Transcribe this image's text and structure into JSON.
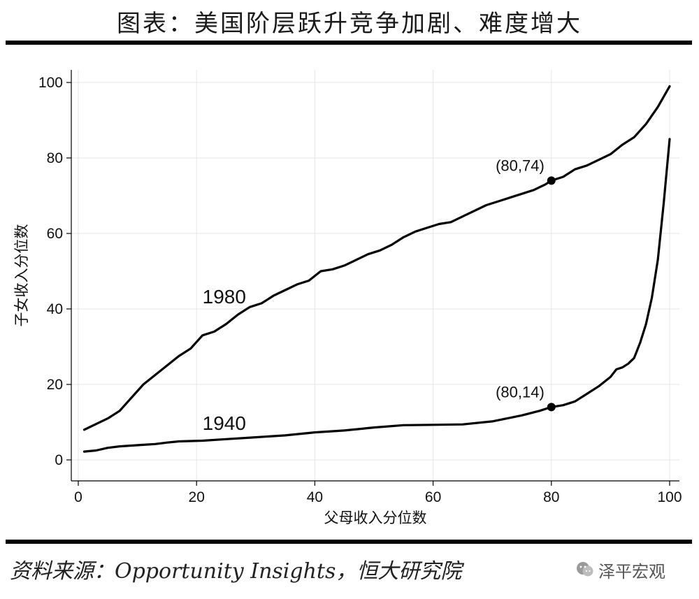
{
  "header": {
    "title": "图表：美国阶层跃升竞争加剧、难度增大"
  },
  "footer": {
    "source": "资料来源：Opportunity Insights，恒大研究院"
  },
  "watermark": {
    "text": "泽平宏观",
    "icon": "wechat-icon"
  },
  "chart_data": {
    "type": "line",
    "title": "",
    "xlabel": "父母收入分位数",
    "ylabel": "子女收入分位数",
    "xlim": [
      0,
      100
    ],
    "ylim": [
      0,
      100
    ],
    "xticks": [
      0,
      20,
      40,
      60,
      80,
      100
    ],
    "yticks": [
      0,
      20,
      40,
      60,
      80,
      100
    ],
    "grid": true,
    "line_color": "#000000",
    "grid_color": "#e6e6e6",
    "series": [
      {
        "name": "1980",
        "x": [
          1,
          3,
          5,
          7,
          9,
          11,
          13,
          15,
          17,
          19,
          21,
          23,
          25,
          27,
          29,
          31,
          33,
          35,
          37,
          39,
          41,
          43,
          45,
          47,
          49,
          51,
          53,
          55,
          57,
          59,
          61,
          63,
          65,
          67,
          69,
          71,
          73,
          75,
          77,
          79,
          80,
          82,
          84,
          86,
          88,
          90,
          92,
          94,
          96,
          98,
          100
        ],
        "values": [
          8,
          9.5,
          11,
          13,
          16.5,
          20,
          22.5,
          25,
          27.5,
          29.5,
          33,
          34,
          36,
          38.5,
          40.5,
          41.5,
          43.5,
          45,
          46.5,
          47.5,
          50,
          50.5,
          51.5,
          53,
          54.5,
          55.5,
          57,
          59,
          60.5,
          61.5,
          62.5,
          63,
          64.5,
          66,
          67.5,
          68.5,
          69.5,
          70.5,
          71.5,
          73,
          74,
          75,
          77,
          78,
          79.5,
          81,
          83.5,
          85.5,
          89,
          93.5,
          99
        ]
      },
      {
        "name": "1940",
        "x": [
          1,
          3,
          5,
          7,
          9,
          11,
          13,
          15,
          17,
          19,
          21,
          25,
          30,
          35,
          40,
          45,
          50,
          55,
          60,
          65,
          70,
          75,
          78,
          80,
          82,
          84,
          86,
          88,
          90,
          91,
          92,
          93,
          94,
          95,
          96,
          97,
          98,
          99,
          100
        ],
        "values": [
          2.2,
          2.5,
          3.2,
          3.6,
          3.8,
          4,
          4.2,
          4.6,
          4.9,
          5,
          5.1,
          5.5,
          6,
          6.5,
          7.3,
          7.8,
          8.6,
          9.2,
          9.3,
          9.4,
          10.2,
          11.8,
          13,
          14,
          14.5,
          15.5,
          17.5,
          19.5,
          22,
          24,
          24.5,
          25.5,
          27,
          31,
          36,
          43,
          53,
          68,
          85
        ]
      }
    ],
    "series_label_positions": [
      {
        "series": "1980",
        "x": 21,
        "y": 41.5
      },
      {
        "series": "1940",
        "x": 21,
        "y": 8
      }
    ],
    "annotations": [
      {
        "text": "(80,74)",
        "x": 80,
        "y": 74
      },
      {
        "text": "(80,14)",
        "x": 80,
        "y": 14
      }
    ]
  }
}
